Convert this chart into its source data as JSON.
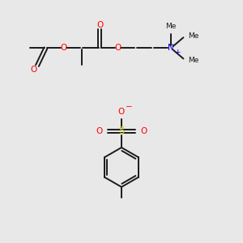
{
  "bg_color": "#e8e8e8",
  "fig_size": [
    3.0,
    3.0
  ],
  "dpi": 100,
  "bond_color": "#1a1a1a",
  "bond_lw": 1.4,
  "O_color": "#ff0000",
  "N_color": "#0000cc",
  "S_color": "#cccc00",
  "font_size": 7.5,
  "small_font": 6.5,
  "xlim": [
    0,
    10
  ],
  "ylim": [
    0,
    10
  ]
}
